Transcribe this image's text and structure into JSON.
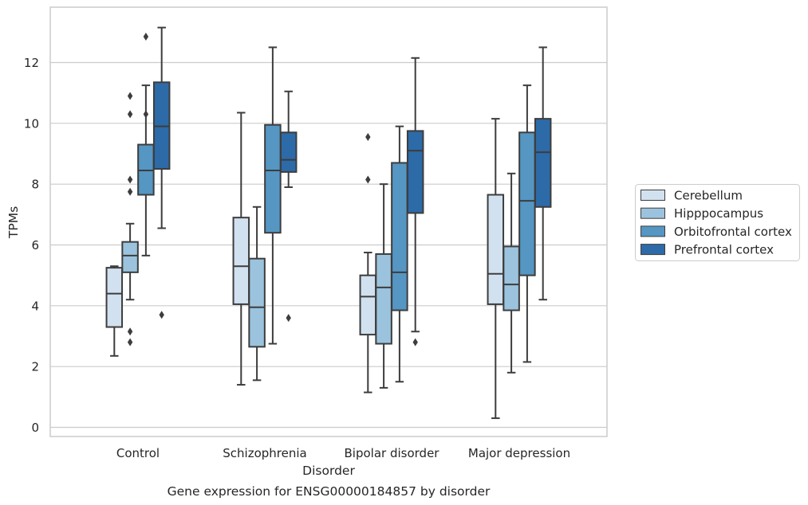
{
  "chart_data": {
    "type": "box",
    "caption": "Gene expression for ENSG00000184857 by disorder",
    "xlabel": "Disorder",
    "ylabel": "TPMs",
    "ylim": [
      -0.3,
      13.8
    ],
    "yticks": [
      0,
      2,
      4,
      6,
      8,
      10,
      12
    ],
    "grid": "horizontal",
    "legend_position": "center-right",
    "categories": [
      "Control",
      "Schizophrenia",
      "Bipolar disorder",
      "Major depression"
    ],
    "series": [
      {
        "name": "Cerebellum",
        "color": "#d2e1f0",
        "boxes": [
          {
            "whislo": 2.35,
            "q1": 3.3,
            "med": 4.4,
            "q3": 5.25,
            "whishi": 5.3,
            "fliers": []
          },
          {
            "whislo": 1.4,
            "q1": 4.05,
            "med": 5.3,
            "q3": 6.9,
            "whishi": 10.35,
            "fliers": []
          },
          {
            "whislo": 1.15,
            "q1": 3.05,
            "med": 4.3,
            "q3": 5.0,
            "whishi": 5.75,
            "fliers": [
              8.15,
              9.55
            ]
          },
          {
            "whislo": 0.3,
            "q1": 4.05,
            "med": 5.05,
            "q3": 7.65,
            "whishi": 10.15,
            "fliers": []
          }
        ]
      },
      {
        "name": "Hipppocampus",
        "color": "#9bc3dd",
        "boxes": [
          {
            "whislo": 4.2,
            "q1": 5.1,
            "med": 5.65,
            "q3": 6.1,
            "whishi": 6.7,
            "fliers": [
              2.8,
              3.15,
              7.75,
              8.15,
              10.3,
              10.9
            ]
          },
          {
            "whislo": 1.55,
            "q1": 2.65,
            "med": 3.95,
            "q3": 5.55,
            "whishi": 7.25,
            "fliers": []
          },
          {
            "whislo": 1.3,
            "q1": 2.75,
            "med": 4.6,
            "q3": 5.7,
            "whishi": 8.0,
            "fliers": []
          },
          {
            "whislo": 1.8,
            "q1": 3.85,
            "med": 4.7,
            "q3": 5.95,
            "whishi": 8.35,
            "fliers": []
          }
        ]
      },
      {
        "name": "Orbitofrontal cortex",
        "color": "#5596c3",
        "boxes": [
          {
            "whislo": 5.65,
            "q1": 7.65,
            "med": 8.45,
            "q3": 9.3,
            "whishi": 11.25,
            "fliers": [
              10.3,
              12.85
            ]
          },
          {
            "whislo": 2.75,
            "q1": 6.4,
            "med": 8.45,
            "q3": 9.95,
            "whishi": 12.5,
            "fliers": []
          },
          {
            "whislo": 1.5,
            "q1": 3.85,
            "med": 5.1,
            "q3": 8.7,
            "whishi": 9.9,
            "fliers": []
          },
          {
            "whislo": 2.15,
            "q1": 5.0,
            "med": 7.45,
            "q3": 9.7,
            "whishi": 11.25,
            "fliers": []
          }
        ]
      },
      {
        "name": "Prefrontal cortex",
        "color": "#2d6aa8",
        "boxes": [
          {
            "whislo": 6.55,
            "q1": 8.5,
            "med": 9.9,
            "q3": 11.35,
            "whishi": 13.15,
            "fliers": [
              3.7
            ]
          },
          {
            "whislo": 7.9,
            "q1": 8.4,
            "med": 8.8,
            "q3": 9.7,
            "whishi": 11.05,
            "fliers": [
              3.6
            ]
          },
          {
            "whislo": 3.15,
            "q1": 7.05,
            "med": 9.1,
            "q3": 9.75,
            "whishi": 12.15,
            "fliers": [
              2.8
            ]
          },
          {
            "whislo": 4.2,
            "q1": 7.25,
            "med": 9.05,
            "q3": 10.15,
            "whishi": 12.5,
            "fliers": []
          }
        ]
      }
    ]
  }
}
